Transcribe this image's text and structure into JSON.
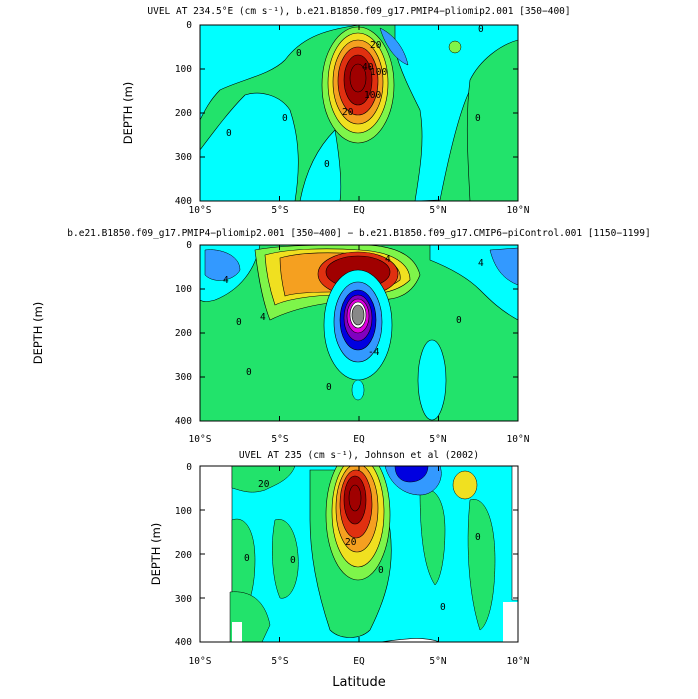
{
  "chart_data": [
    {
      "type": "contour",
      "title": "UVEL AT 234.5°E (cm s⁻¹), b.e21.B1850.f09_g17.PMIP4−pliomip2.001 [350−400]",
      "xlabel": "",
      "ylabel": "DEPTH (m)",
      "xticks": [
        "10°S",
        "5°S",
        "EQ",
        "5°N",
        "10°N"
      ],
      "yticks": [
        "0",
        "100",
        "200",
        "300",
        "400"
      ],
      "xlim": [
        -10,
        10
      ],
      "ylim": [
        400,
        0
      ],
      "contour_labels": [
        "20",
        "40",
        "100",
        "100",
        "20",
        "0",
        "0",
        "0",
        "0",
        "0",
        "0"
      ]
    },
    {
      "type": "contour",
      "title": "b.e21.B1850.f09_g17.PMIP4−pliomip2.001 [350−400] − b.e21.B1850.f09_g17.CMIP6−piControl.001 [1150−1199]",
      "xlabel": "",
      "ylabel": "DEPTH (m)",
      "xticks": [
        "10°S",
        "5°S",
        "EQ",
        "5°N",
        "10°N"
      ],
      "yticks": [
        "0",
        "100",
        "200",
        "300",
        "400"
      ],
      "xlim": [
        -10,
        10
      ],
      "ylim": [
        400,
        0
      ],
      "contour_labels": [
        "4",
        "4",
        "4",
        "4",
        "-4",
        "0",
        "0",
        "0",
        "0"
      ]
    },
    {
      "type": "contour",
      "title": "UVEL AT 235 (cm s⁻¹), Johnson et al (2002)",
      "xlabel": "Latitude",
      "ylabel": "DEPTH (m)",
      "xticks": [
        "10°S",
        "5°S",
        "EQ",
        "5°N",
        "10°N"
      ],
      "yticks": [
        "0",
        "100",
        "200",
        "300",
        "400"
      ],
      "xlim": [
        -10,
        10
      ],
      "ylim": [
        400,
        0
      ],
      "contour_labels": [
        "20",
        "0",
        "20",
        "0",
        "0",
        "0",
        "0"
      ]
    }
  ],
  "colors": {
    "bg_cyan": "#00ffff",
    "green": "#22e36b",
    "light_green": "#7ef54a",
    "yellow": "#f0e020",
    "orange": "#f5a020",
    "red": "#e03010",
    "dark_red": "#a00000",
    "blue": "#3399ff",
    "dark_blue": "#0000e0",
    "magenta": "#e000e0",
    "purple": "#8000c0",
    "gray": "#888888"
  }
}
